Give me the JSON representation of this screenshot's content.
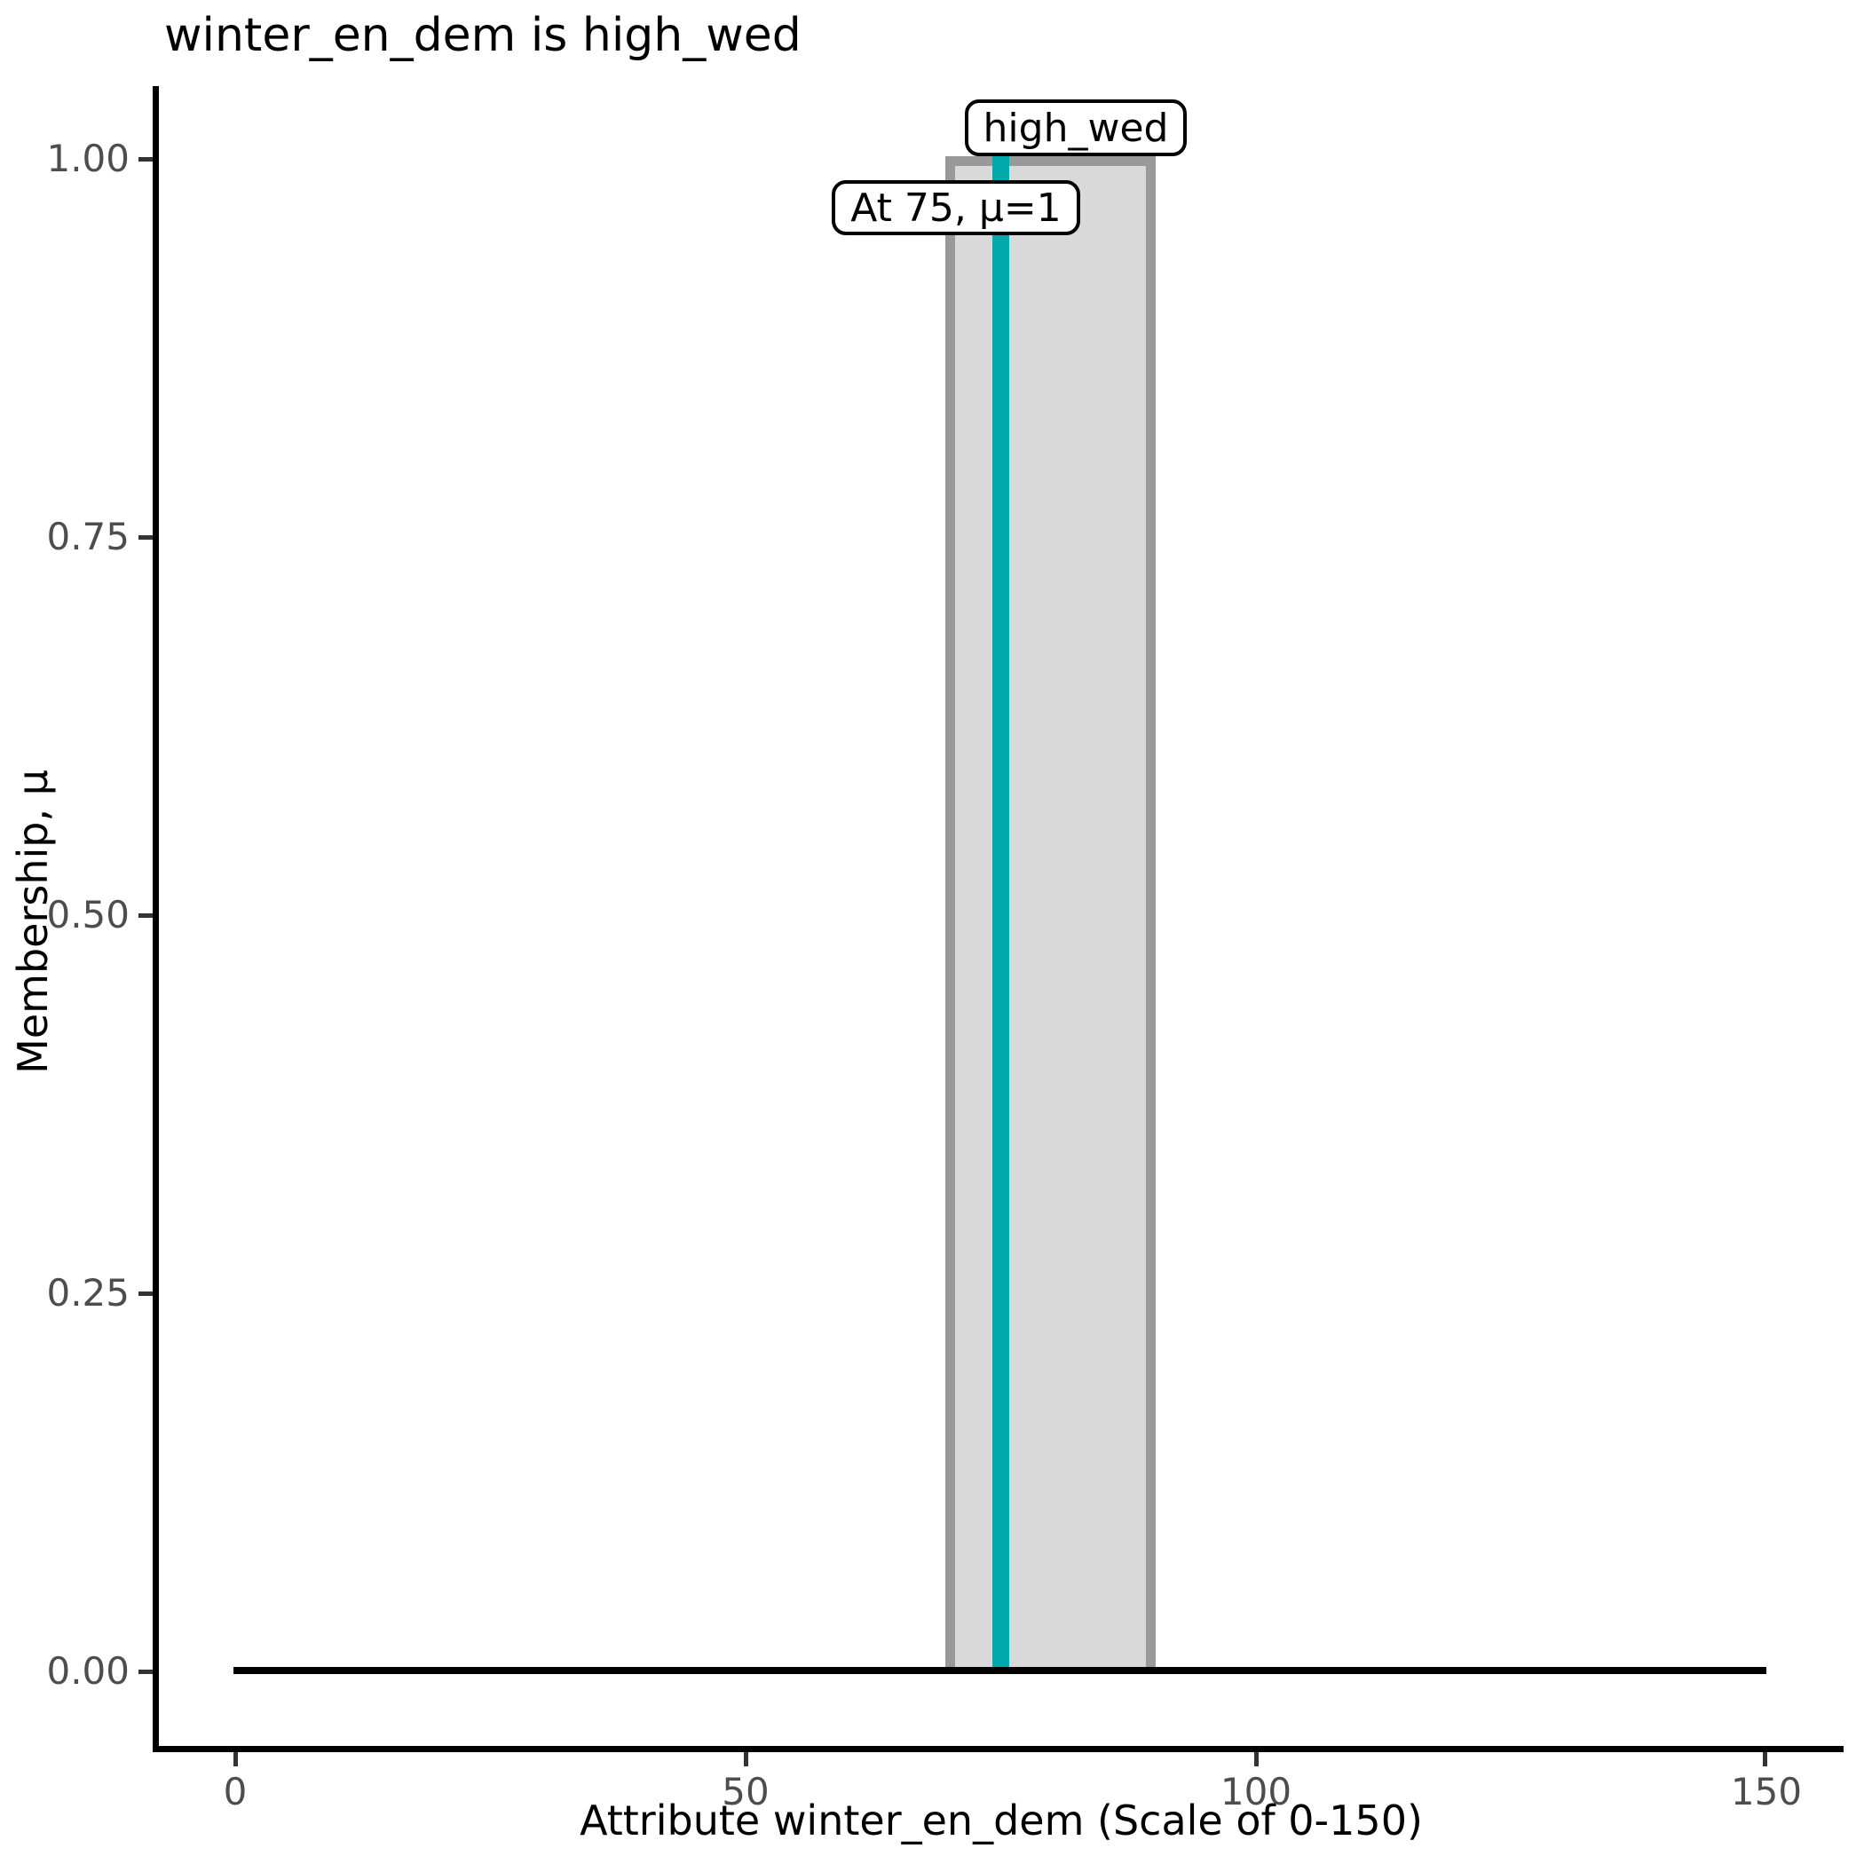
{
  "title": "winter_en_dem is high_wed",
  "y_axis": {
    "label": "Membership, μ",
    "ticks": [
      "1.00",
      "0.75",
      "0.50",
      "0.25",
      "0.00"
    ]
  },
  "x_axis": {
    "label": "Attribute winter_en_dem (Scale of 0-150)",
    "ticks": [
      "0",
      "50",
      "100",
      "150"
    ]
  },
  "annotations": {
    "set_label": "high_wed",
    "peak_label": "At 75, μ=1"
  },
  "colors": {
    "membership_fill": "#d9d9d9",
    "membership_border": "#999999",
    "peak_line": "#00a9ab",
    "axis": "#000000",
    "tick_label": "#4d4d4d",
    "annotation_bg": "#ffffff",
    "annotation_border": "#000000"
  },
  "chart_data": {
    "type": "area",
    "title": "winter_en_dem is high_wed",
    "xlabel": "Attribute winter_en_dem (Scale of 0-150)",
    "ylabel": "Membership, μ",
    "xlim": [
      0,
      150
    ],
    "ylim": [
      0,
      1.05
    ],
    "x_ticks": [
      0,
      50,
      100,
      150
    ],
    "y_ticks": [
      0.0,
      0.25,
      0.5,
      0.75,
      1.0
    ],
    "grid": false,
    "legend": false,
    "series": [
      {
        "name": "high_wed",
        "type": "area",
        "fill_color": "#d9d9d9",
        "edge_color": "#999999",
        "x": [
          0,
          70,
          70,
          90,
          90,
          150
        ],
        "y": [
          0,
          0,
          1,
          1,
          0,
          0
        ]
      },
      {
        "name": "peak-marker",
        "type": "vline",
        "color": "#00a9ab",
        "x": 75,
        "y_from": 0,
        "y_to": 1
      },
      {
        "name": "zero-membership-baseline",
        "type": "line",
        "color": "#000000",
        "x": [
          0,
          150
        ],
        "y": [
          0,
          0
        ]
      }
    ],
    "annotations": [
      {
        "text": "high_wed",
        "x": 82,
        "y": 1.04,
        "boxed": true
      },
      {
        "text": "At 75, μ=1",
        "x": 69,
        "y": 0.96,
        "boxed": true
      }
    ]
  }
}
